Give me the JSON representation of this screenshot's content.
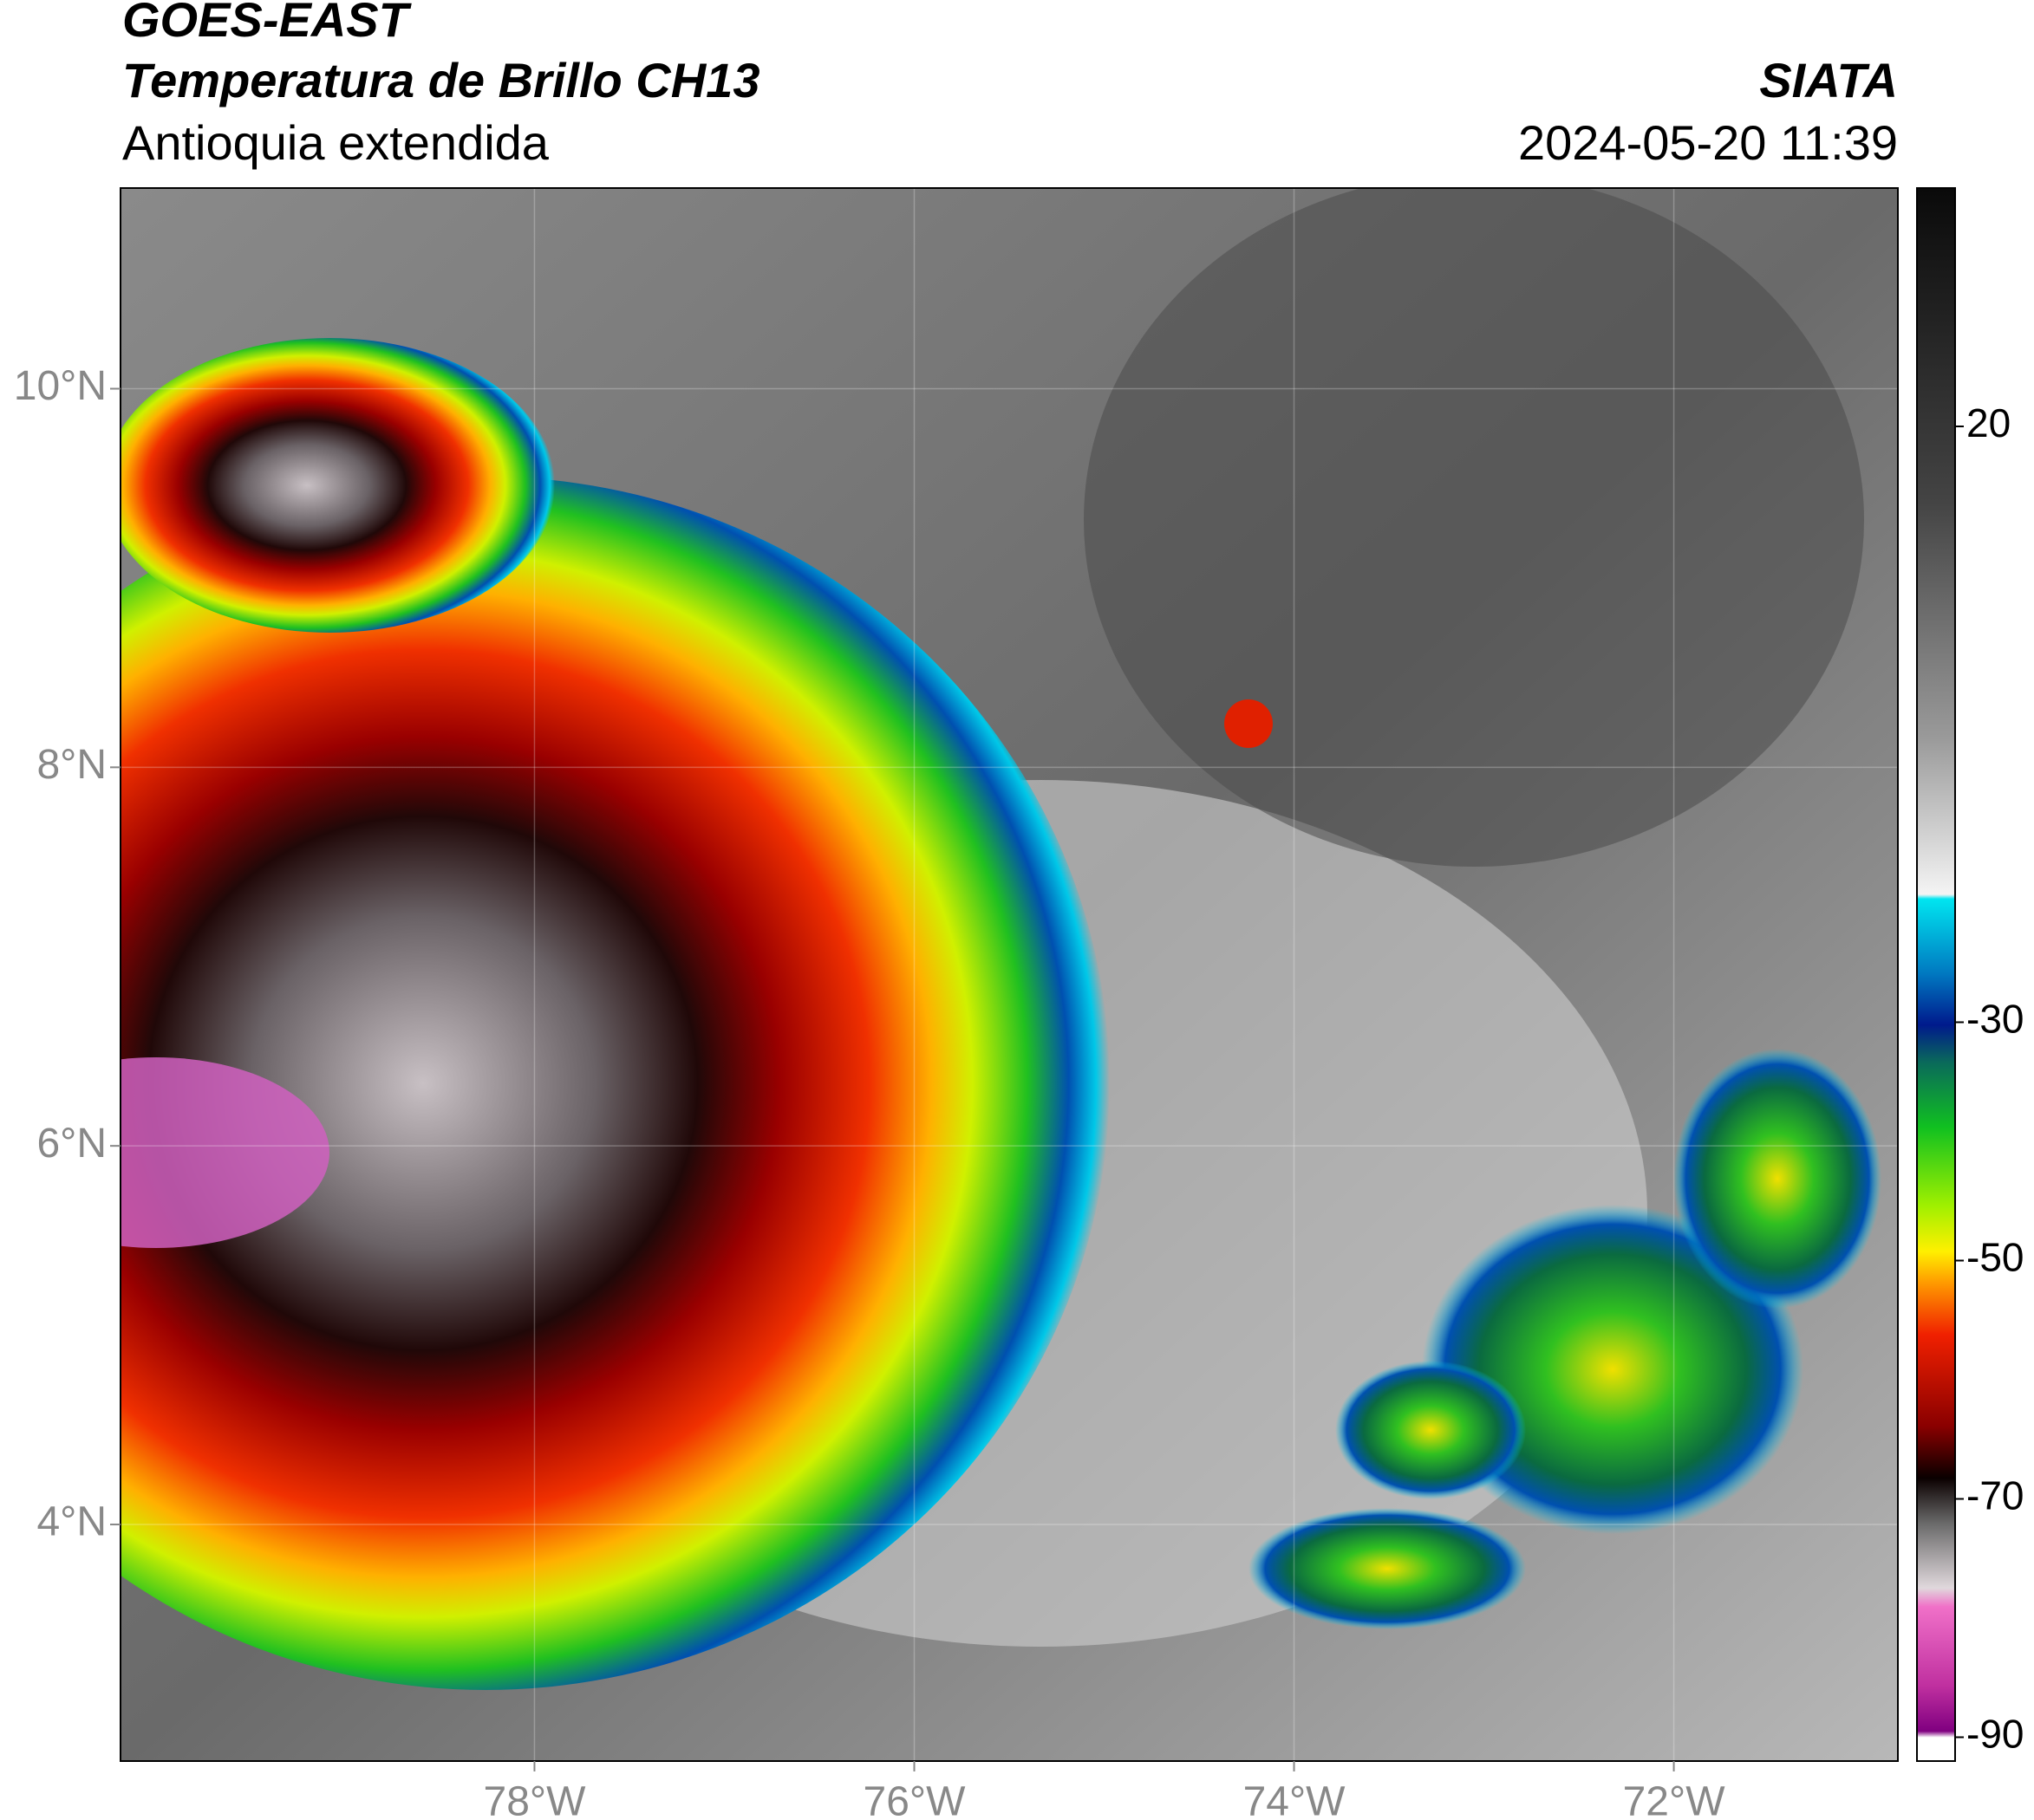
{
  "header": {
    "title": "GOES-EAST",
    "subtitle": "Temperatura de Brillo CH13",
    "region": "Antioquia extendida",
    "source": "SIATA",
    "datetime": "2024-05-20 11:39"
  },
  "map": {
    "xlim": [
      -80.18,
      -70.82
    ],
    "ylim": [
      2.75,
      11.06
    ],
    "xticks": [
      {
        "value": -78,
        "label": "78°W"
      },
      {
        "value": -76,
        "label": "76°W"
      },
      {
        "value": -74,
        "label": "74°W"
      },
      {
        "value": -72,
        "label": "72°W"
      }
    ],
    "yticks": [
      {
        "value": 10,
        "label": "10°N"
      },
      {
        "value": 8,
        "label": "8°N"
      },
      {
        "value": 6,
        "label": "6°N"
      },
      {
        "value": 4,
        "label": "4°N"
      }
    ]
  },
  "colorbar": {
    "lim": [
      -92,
      40
    ],
    "ticks": [
      20,
      -30,
      -50,
      -70,
      -90
    ]
  }
}
